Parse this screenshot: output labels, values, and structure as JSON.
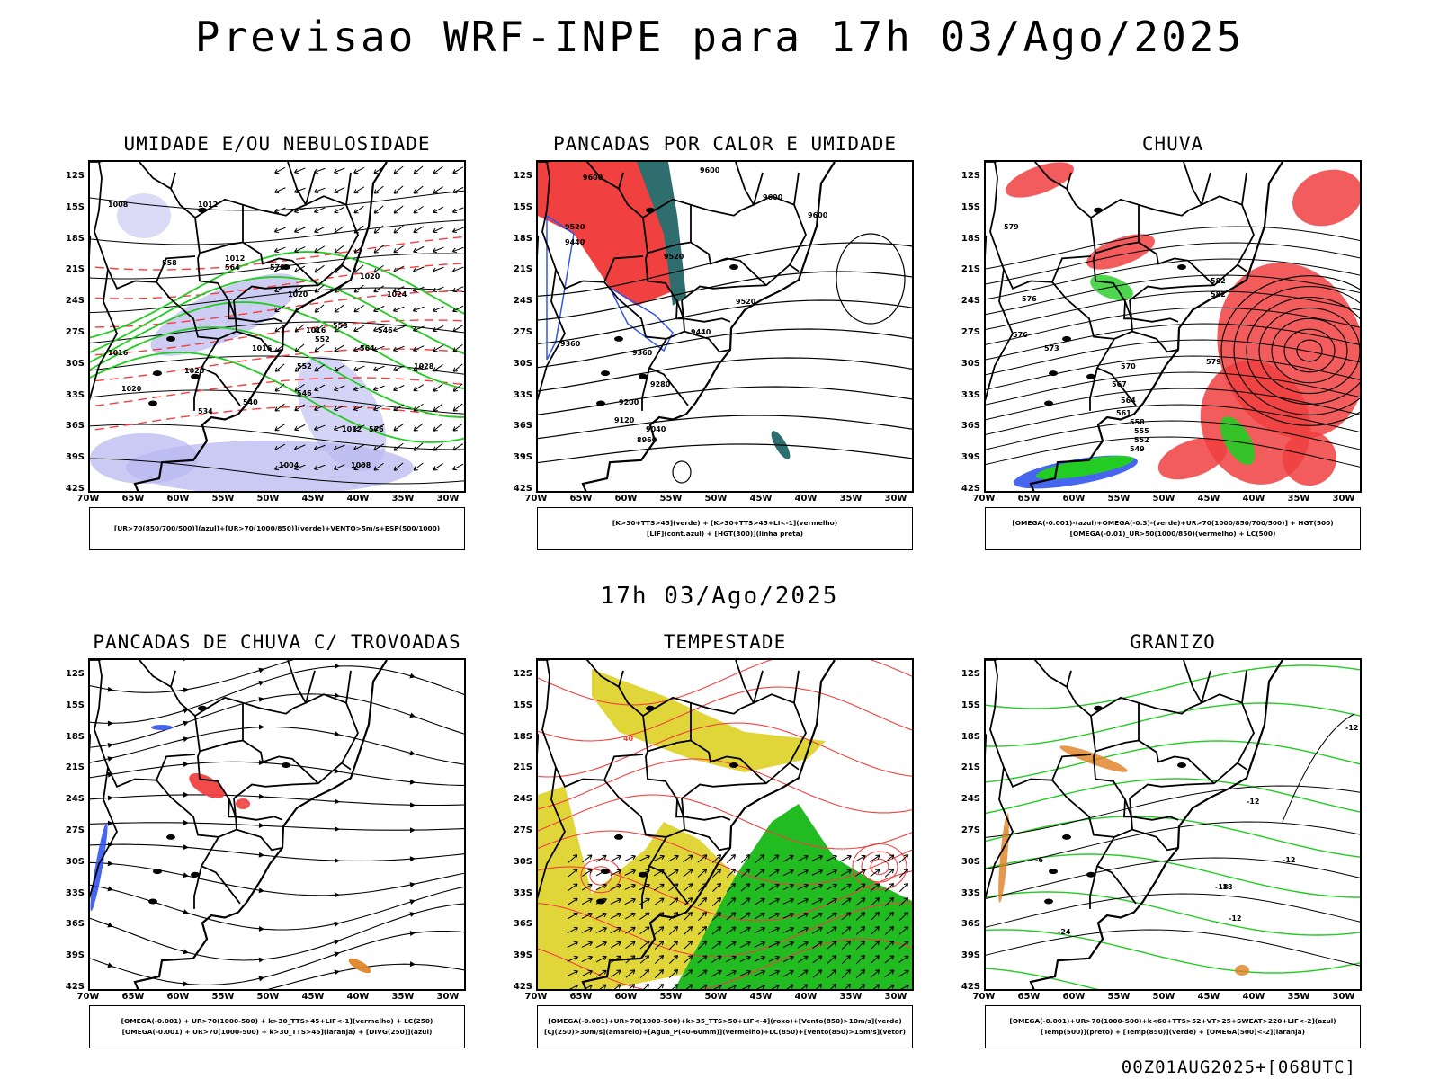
{
  "header": {
    "title": "Previsao WRF-INPE  para 17h 03/Ago/2025"
  },
  "mid_label": "17h 03/Ago/2025",
  "footer": "00Z01AUG2025+[068UTC]",
  "axes": {
    "lat_ticks": [
      "12S",
      "15S",
      "18S",
      "21S",
      "24S",
      "27S",
      "30S",
      "33S",
      "36S",
      "39S",
      "42S"
    ],
    "lon_ticks": [
      "70W",
      "65W",
      "60W",
      "55W",
      "50W",
      "45W",
      "40W",
      "35W",
      "30W"
    ]
  },
  "colors": {
    "red": "#f04040",
    "blue": "#3355ee",
    "green": "#22cc22",
    "dark_green": "#2f6e6e",
    "yellow": "#e0d63a",
    "lavender": "#b8b8f0",
    "orange": "#e08020",
    "black": "#000000"
  },
  "panels": [
    {
      "id": "umidade",
      "title": "UMIDADE E/OU NEBULOSIDADE",
      "legend": [
        "[UR>70(850/700/500)](azul)+[UR>70(1000/850)](verde)+VENTO>5m/s+ESP(500/1000)"
      ],
      "contour_labels": [
        "1008",
        "1012",
        "1012",
        "1016",
        "1020",
        "1020",
        "1024",
        "1028",
        "1012",
        "1008",
        "1004",
        "1020",
        "1016",
        "1016",
        "576",
        "564",
        "558",
        "552",
        "546",
        "540",
        "534",
        "552",
        "564",
        "546",
        "558",
        "570",
        "1020"
      ]
    },
    {
      "id": "pancadas_calor",
      "title": "PANCADAS POR CALOR E UMIDADE",
      "legend": [
        "[K>30+TTS>45](verde) + [K>30+TTS>45+LI<-1](vermelho)",
        "[LIF](cont.azul) + [HGT(300)](linha preta)"
      ],
      "contour_labels": [
        "9600",
        "9600",
        "9600",
        "9600",
        "9520",
        "9520",
        "9520",
        "9440",
        "9440",
        "9360",
        "9360",
        "9280",
        "9200",
        "9120",
        "9040",
        "8960"
      ]
    },
    {
      "id": "chuva",
      "title": "CHUVA",
      "legend": [
        "[OMEGA(-0.001)-(azul)+OMEGA(-0.3)-(verde)+UR>70(1000/850/700/500)] + HGT(500)",
        "[OMEGA(-0.01)_UR>50(1000/850)(vermelho) + LC(500)"
      ],
      "contour_labels": [
        "579",
        "582",
        "576",
        "576",
        "573",
        "570",
        "567",
        "564",
        "561",
        "558",
        "555",
        "552",
        "549",
        "582",
        "579"
      ]
    },
    {
      "id": "pancadas_trovoadas",
      "title": "PANCADAS DE CHUVA C/ TROVOADAS",
      "legend": [
        "[OMEGA(-0.001) + UR>70(1000-500) + k>30_TTS>45+LIF<-1](vermelho) + LC(250)",
        "[OMEGA(-0.001) + UR>70(1000-500) + k>30_TTS>45](laranja) + [DIVG(250)](azul)"
      ],
      "contour_labels": []
    },
    {
      "id": "tempestade",
      "title": "TEMPESTADE",
      "legend": [
        "[OMEGA(-0.001)+UR>70(1000-500)+k>35_TTS>50+LIF<-4](roxo)+[Vento(850)>10m/s](verde)",
        "[CJ(250)>30m/s](amarelo)+[Agua_P(40-60mm)](vermelho)+LC(850)+[Vento(850)>15m/s](vetor)"
      ],
      "contour_labels": [
        "40"
      ]
    },
    {
      "id": "granizo",
      "title": "GRANIZO",
      "legend": [
        "[OMEGA(-0.001)+UR>70(1000-500)+k<60+TTS>52+VT>25+SWEAT>220+LIF<-2](azul)",
        "[Temp(500)](preto) + [Temp(850)](verde) + [OMEGA(500)<-2](laranja)"
      ],
      "contour_labels": [
        "-12",
        "-12",
        "-12",
        "-12",
        "-18",
        "-18",
        "-24",
        "-6"
      ]
    }
  ]
}
